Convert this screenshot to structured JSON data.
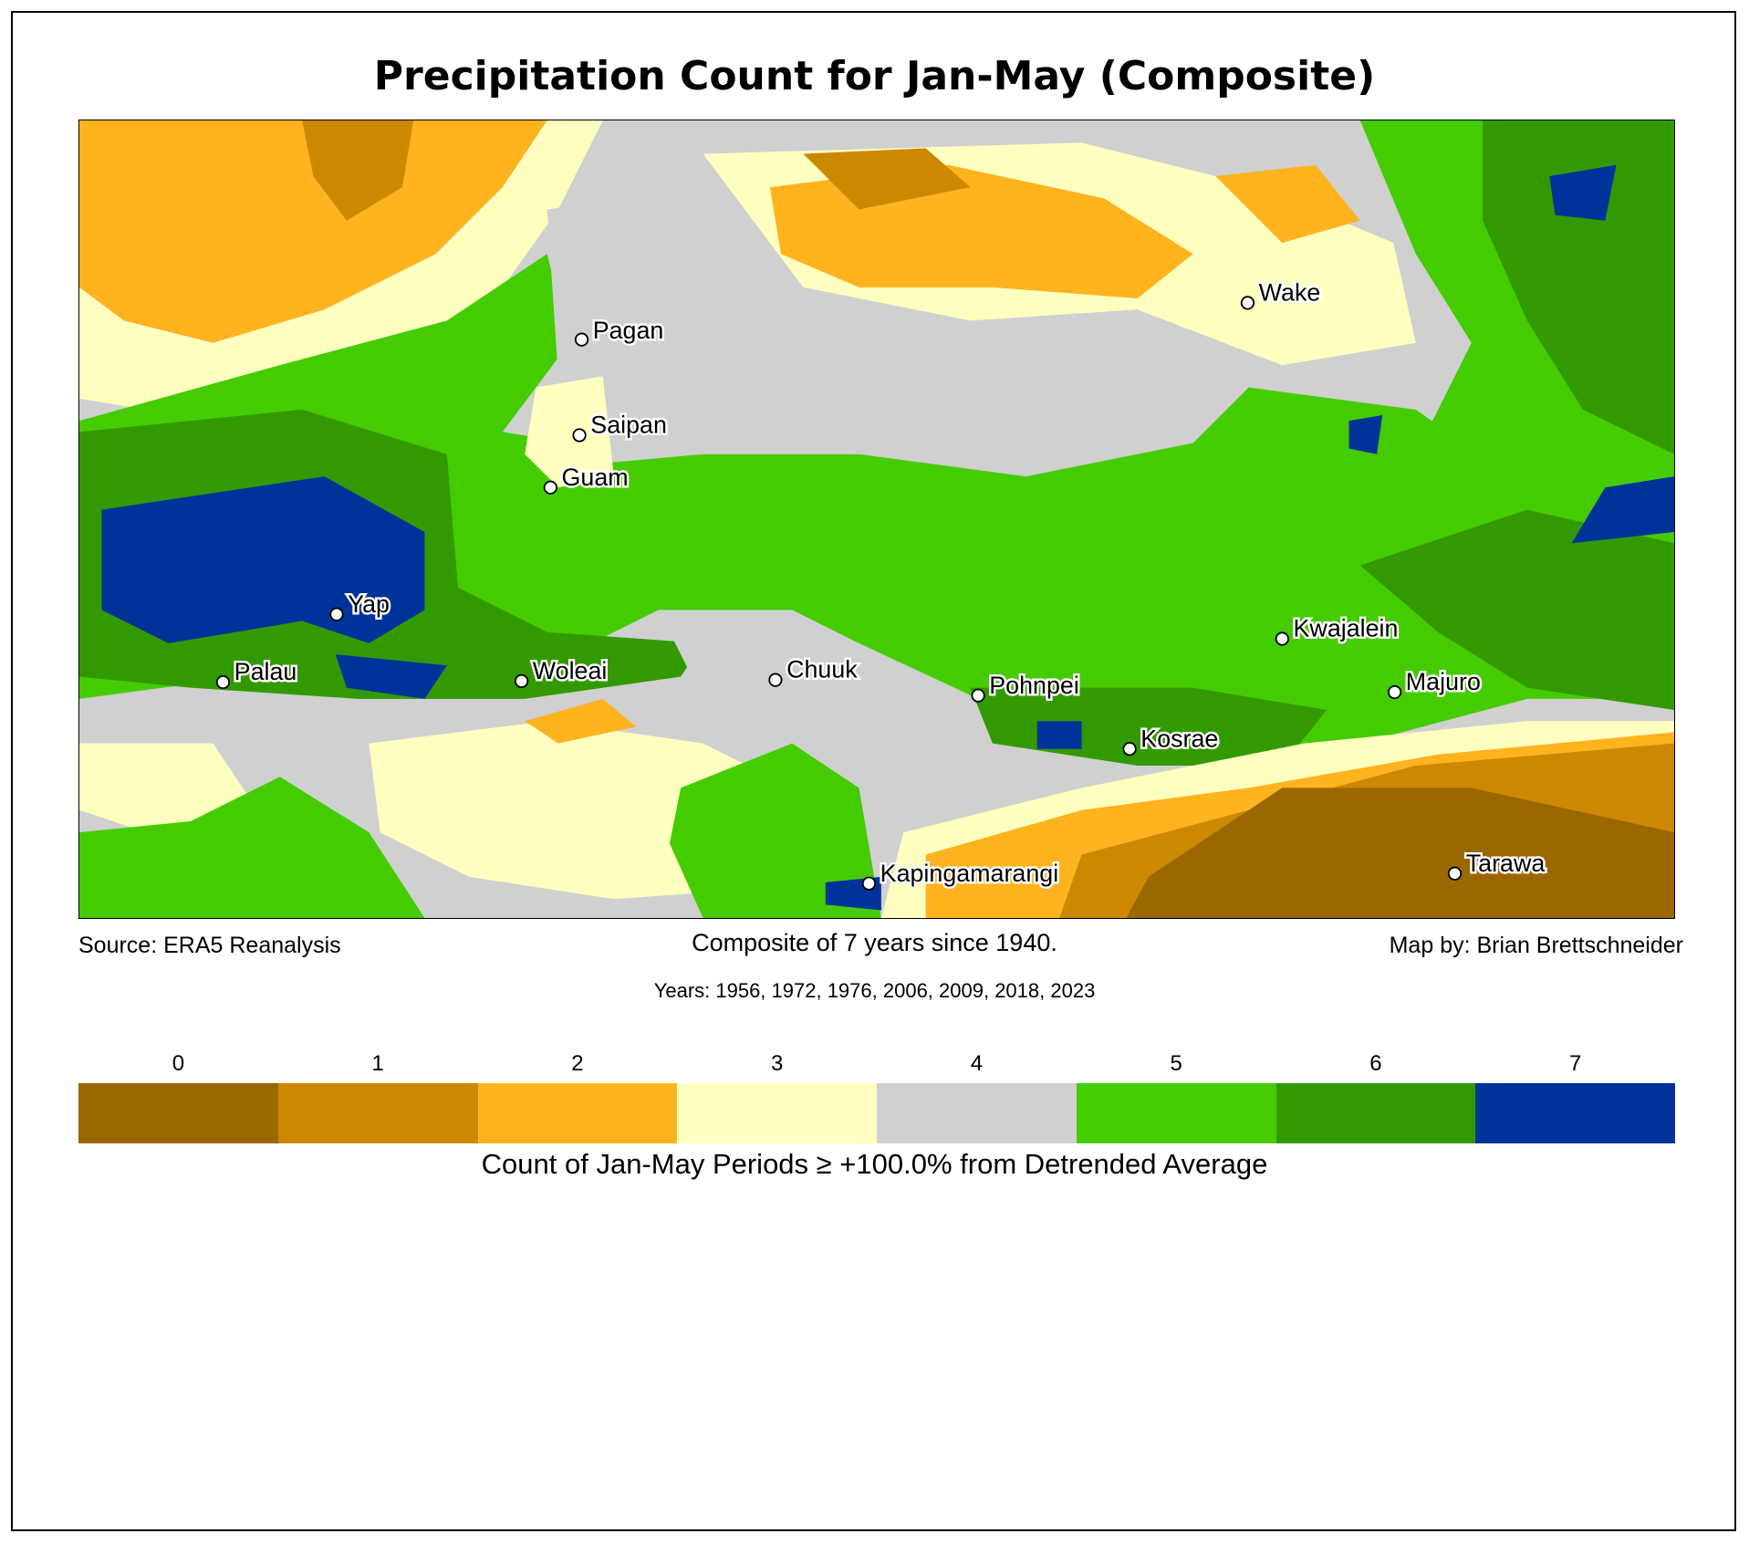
{
  "title": "Precipitation Count for Jan-May (Composite)",
  "footer": {
    "source": "Source: ERA5 Reanalysis",
    "composite": "Composite of 7 years since 1940.",
    "credit": "Map by: Brian Brettschneider",
    "years": "Years: 1956, 1972, 1976, 2006, 2009, 2018, 2023"
  },
  "stations": [
    "Pagan",
    "Saipan",
    "Guam",
    "Yap",
    "Palau",
    "Woleai",
    "Chuuk",
    "Pohnpei",
    "Kosrae",
    "Kwajalein",
    "Majuro",
    "Wake",
    "Kapingamarangi",
    "Tarawa"
  ],
  "legend": {
    "label": "Count of Jan-May Periods ≥ +100.0% from Detrended Average",
    "classes": [
      {
        "value": "0",
        "color": "#9a6700"
      },
      {
        "value": "1",
        "color": "#cc8800"
      },
      {
        "value": "2",
        "color": "#ffb31f"
      },
      {
        "value": "3",
        "color": "#ffffc0"
      },
      {
        "value": "4",
        "color": "#d0d0d0"
      },
      {
        "value": "5",
        "color": "#44cc00"
      },
      {
        "value": "6",
        "color": "#339900"
      },
      {
        "value": "7",
        "color": "#003399"
      }
    ]
  }
}
